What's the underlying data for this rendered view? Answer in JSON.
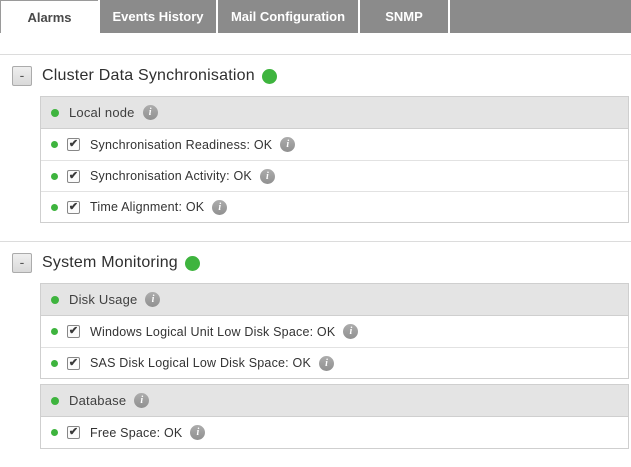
{
  "tab_bar": {
    "tabs": [
      {
        "label": "Alarms",
        "active": true
      },
      {
        "label": "Events History",
        "active": false
      },
      {
        "label": "Mail Configuration",
        "active": false
      },
      {
        "label": "SNMP",
        "active": false
      }
    ]
  },
  "glyphs": {
    "check": "✔",
    "info": "i",
    "collapse": "-"
  },
  "colors": {
    "status_ok_green": "#3eb43e",
    "inactive_tab_gray": "#8b8b8b",
    "active_tab_text": "#4a4a4a",
    "group_header_gray": "#e4e4e4",
    "info_icon_gray": "#9e9e9e"
  },
  "sections": [
    {
      "title": "Cluster Data Synchronisation",
      "status": "ok",
      "collapse_label": "-",
      "groups": [
        {
          "title": "Local node",
          "status": "ok",
          "items": [
            {
              "label": "Synchronisation Readiness: OK",
              "checked": true
            },
            {
              "label": "Synchronisation Activity: OK",
              "checked": true
            },
            {
              "label": "Time Alignment: OK",
              "checked": true
            }
          ]
        }
      ]
    },
    {
      "title": "System Monitoring",
      "status": "ok",
      "collapse_label": "-",
      "groups": [
        {
          "title": "Disk Usage",
          "status": "ok",
          "items": [
            {
              "label": "Windows Logical Unit Low Disk Space: OK",
              "checked": true
            },
            {
              "label": "SAS Disk Logical Low Disk Space: OK",
              "checked": true
            }
          ]
        },
        {
          "title": "Database",
          "status": "ok",
          "items": [
            {
              "label": "Free Space: OK",
              "checked": true
            }
          ]
        }
      ]
    }
  ]
}
